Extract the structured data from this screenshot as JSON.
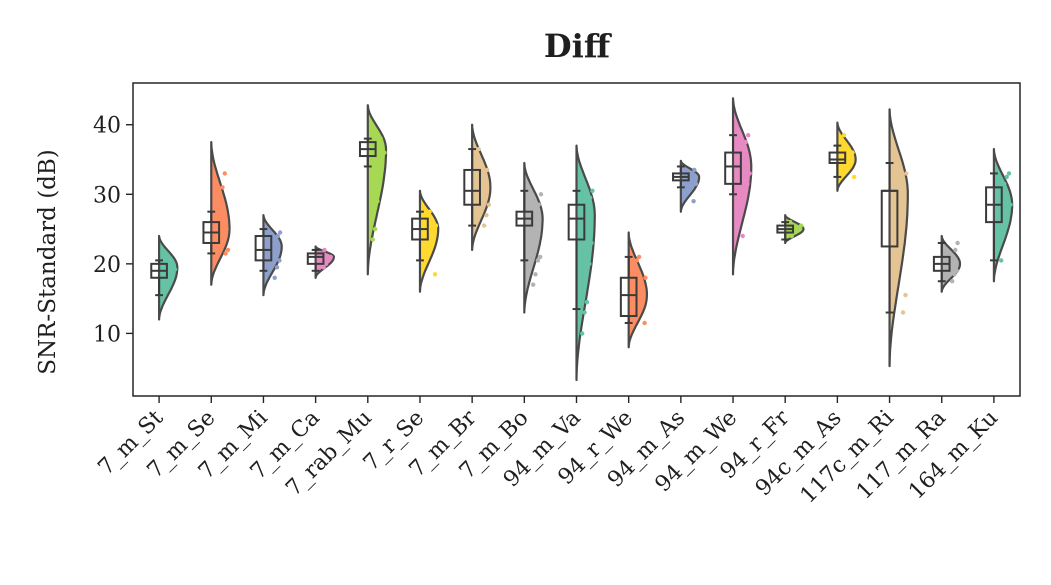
{
  "chart_data": {
    "type": "raincloud",
    "title": "Diff",
    "xlabel": "",
    "ylabel": "SNR-Standard (dB)",
    "ylim": [
      1,
      46
    ],
    "yticks": [
      10,
      20,
      30,
      40
    ],
    "grid": false,
    "legend": "none",
    "categories": [
      "7_m_St",
      "7_m_Se",
      "7_m_Mi",
      "7_m_Ca",
      "7_rab_Mu",
      "7_r_Se",
      "7_m_Br",
      "7_m_Bo",
      "94_m_Va",
      "94_r_We",
      "94_m_As",
      "94_m_We",
      "94_r_Fr",
      "94c_m_As",
      "117c_m_Ri",
      "117_m_Ra",
      "164_m_Ku"
    ],
    "series": [
      {
        "category": "7_m_St",
        "color": "#66c2a5",
        "whisker": [
          15.5,
          20.5
        ],
        "box": [
          18.0,
          20.0
        ],
        "median": 19.0,
        "violin_range": [
          12.0,
          24.0
        ],
        "violin_peak": 19.5,
        "points": [
          15.5,
          17.5,
          18.0,
          18.5,
          19.0,
          19.2,
          19.5,
          20.0,
          20.3
        ]
      },
      {
        "category": "7_m_Se",
        "color": "#fc8d62",
        "whisker": [
          21.5,
          27.5
        ],
        "box": [
          23.0,
          26.0
        ],
        "median": 24.5,
        "violin_range": [
          17.0,
          37.5
        ],
        "violin_peak": 25.0,
        "points": [
          21.5,
          22.0,
          23.0,
          23.5,
          24.0,
          24.5,
          25.0,
          25.5,
          26.0,
          27.0,
          31.0,
          33.0
        ]
      },
      {
        "category": "7_m_Mi",
        "color": "#8da0cb",
        "whisker": [
          19.0,
          25.0
        ],
        "box": [
          20.5,
          24.0
        ],
        "median": 22.0,
        "violin_range": [
          15.5,
          27.0
        ],
        "violin_peak": 22.5,
        "points": [
          18.0,
          19.5,
          20.5,
          21.0,
          22.0,
          22.5,
          23.0,
          24.0,
          24.5
        ]
      },
      {
        "category": "7_m_Ca",
        "color": "#e78ac3",
        "whisker": [
          19.0,
          22.0
        ],
        "box": [
          20.0,
          21.5
        ],
        "median": 21.0,
        "violin_range": [
          18.0,
          22.5
        ],
        "violin_peak": 21.0,
        "points": [
          19.5,
          20.0,
          20.5,
          21.0,
          21.0,
          21.5,
          22.0
        ]
      },
      {
        "category": "7_rab_Mu",
        "color": "#a6d854",
        "whisker": [
          34.0,
          38.0
        ],
        "box": [
          35.5,
          37.5
        ],
        "median": 36.5,
        "violin_range": [
          18.5,
          42.8
        ],
        "violin_peak": 36.5,
        "points": [
          23.5,
          25.0,
          29.0,
          34.0,
          35.5,
          36.0,
          36.5,
          37.0,
          37.5,
          38.0
        ]
      },
      {
        "category": "7_r_Se",
        "color": "#ffd92f",
        "whisker": [
          20.5,
          27.5
        ],
        "box": [
          23.5,
          26.5
        ],
        "median": 25.0,
        "violin_range": [
          16.0,
          30.5
        ],
        "violin_peak": 25.0,
        "points": [
          18.5,
          20.5,
          22.5,
          23.5,
          24.5,
          25.0,
          25.5,
          26.5,
          27.0,
          27.5
        ]
      },
      {
        "category": "7_m_Br",
        "color": "#e5c494",
        "whisker": [
          25.5,
          36.5
        ],
        "box": [
          28.5,
          33.5
        ],
        "median": 30.5,
        "violin_range": [
          22.0,
          40.0
        ],
        "violin_peak": 31.0,
        "points": [
          25.5,
          27.0,
          28.5,
          30.0,
          31.0,
          32.0,
          33.0,
          33.5,
          35.0,
          36.5
        ]
      },
      {
        "category": "7_m_Bo",
        "color": "#b3b3b3",
        "whisker": [
          20.5,
          30.5
        ],
        "box": [
          25.5,
          27.5
        ],
        "median": 26.5,
        "violin_range": [
          13.0,
          34.5
        ],
        "violin_peak": 26.5,
        "points": [
          17.0,
          18.5,
          20.5,
          21.0,
          25.5,
          26.5,
          27.0,
          27.5,
          28.5,
          30.0
        ]
      },
      {
        "category": "94_m_Va",
        "color": "#66c2a5",
        "whisker": [
          13.5,
          30.5
        ],
        "box": [
          23.5,
          28.5
        ],
        "median": 26.5,
        "violin_range": [
          3.3,
          37.0
        ],
        "violin_peak": 27.0,
        "points": [
          10.0,
          13.0,
          14.5,
          20.0,
          23.0,
          24.5,
          26.0,
          27.5,
          28.5,
          29.5,
          30.5
        ]
      },
      {
        "category": "94_r_We",
        "color": "#fc8d62",
        "whisker": [
          11.5,
          21.0
        ],
        "box": [
          12.5,
          18.0
        ],
        "median": 15.5,
        "violin_range": [
          8.0,
          24.5
        ],
        "violin_peak": 15.5,
        "points": [
          11.5,
          12.0,
          13.0,
          14.0,
          15.5,
          16.5,
          18.0,
          19.5,
          20.5,
          21.0
        ]
      },
      {
        "category": "94_m_As",
        "color": "#8da0cb",
        "whisker": [
          31.0,
          34.0
        ],
        "box": [
          32.0,
          33.0
        ],
        "median": 32.5,
        "violin_range": [
          27.5,
          34.8
        ],
        "violin_peak": 32.5,
        "points": [
          29.0,
          31.5,
          32.0,
          32.5,
          32.5,
          33.0,
          33.5
        ]
      },
      {
        "category": "94_m_We",
        "color": "#e78ac3",
        "whisker": [
          30.0,
          38.5
        ],
        "box": [
          31.5,
          36.0
        ],
        "median": 34.0,
        "violin_range": [
          18.5,
          43.8
        ],
        "violin_peak": 34.0,
        "points": [
          24.0,
          30.0,
          31.5,
          33.0,
          34.0,
          35.0,
          36.0,
          37.5,
          38.5
        ]
      },
      {
        "category": "94_r_Fr",
        "color": "#a6d854",
        "whisker": [
          23.5,
          26.0
        ],
        "box": [
          24.5,
          25.5
        ],
        "median": 25.0,
        "violin_range": [
          23.0,
          27.0
        ],
        "violin_peak": 25.0,
        "points": [
          24.0,
          24.5,
          25.0,
          25.0,
          25.5,
          26.0
        ]
      },
      {
        "category": "94c_m_As",
        "color": "#ffd92f",
        "whisker": [
          32.5,
          37.0
        ],
        "box": [
          34.5,
          36.0
        ],
        "median": 35.0,
        "violin_range": [
          30.5,
          40.3
        ],
        "violin_peak": 35.0,
        "points": [
          32.5,
          33.5,
          34.5,
          35.0,
          35.5,
          36.0,
          37.0,
          38.5
        ]
      },
      {
        "category": "117c_m_Ri",
        "color": "#e5c494",
        "whisker": [
          13.0,
          34.5
        ],
        "box": [
          22.5,
          30.5
        ],
        "median": 30.5,
        "violin_range": [
          5.3,
          42.2
        ],
        "violin_peak": 30.0,
        "points": [
          13.0,
          15.5,
          18.0,
          22.5,
          26.0,
          30.0,
          31.5,
          33.0,
          34.5
        ]
      },
      {
        "category": "117_m_Ra",
        "color": "#b3b3b3",
        "whisker": [
          17.5,
          23.0
        ],
        "box": [
          19.0,
          21.0
        ],
        "median": 20.0,
        "violin_range": [
          16.0,
          24.0
        ],
        "violin_peak": 20.0,
        "points": [
          17.5,
          18.5,
          19.0,
          19.5,
          20.0,
          20.5,
          21.0,
          22.0,
          23.0
        ]
      },
      {
        "category": "164_m_Ku",
        "color": "#66c2a5",
        "whisker": [
          20.5,
          33.0
        ],
        "box": [
          26.0,
          31.0
        ],
        "median": 28.5,
        "violin_range": [
          17.5,
          36.5
        ],
        "violin_peak": 28.5,
        "points": [
          20.5,
          25.5,
          26.5,
          27.5,
          28.5,
          29.5,
          30.5,
          31.5,
          32.5,
          33.0
        ]
      }
    ]
  }
}
